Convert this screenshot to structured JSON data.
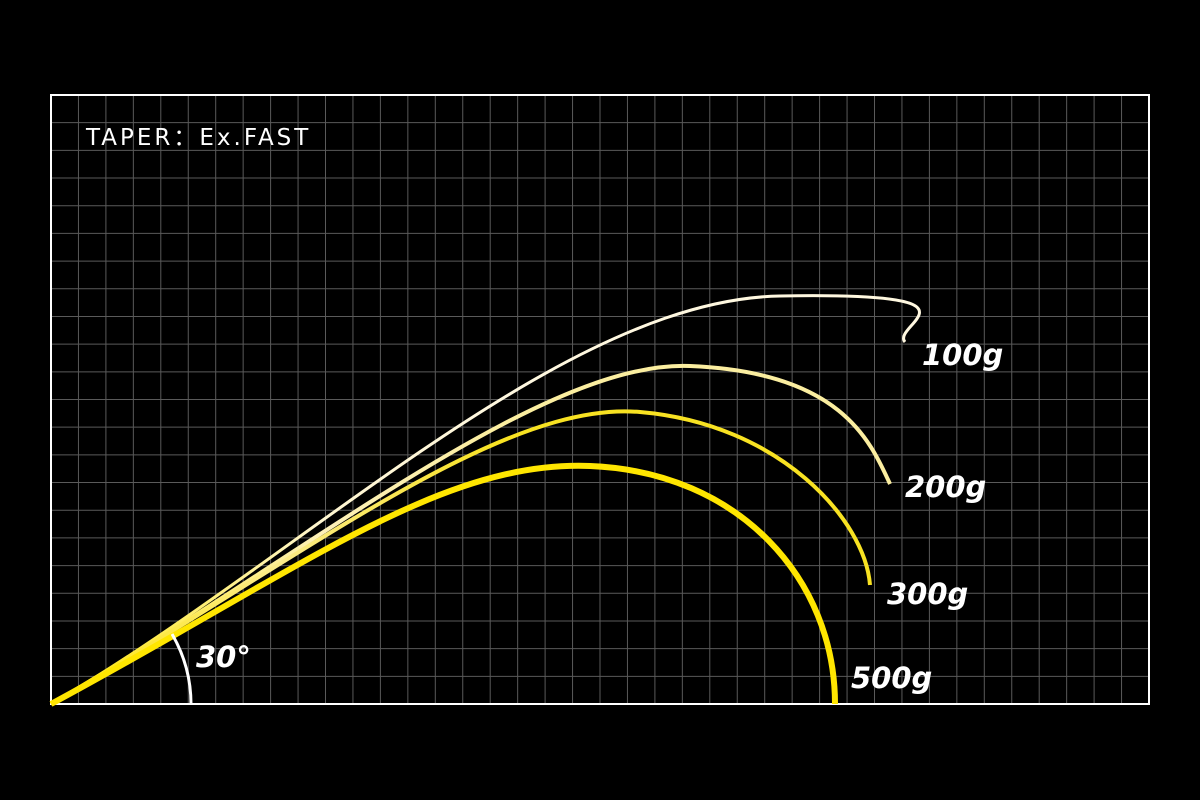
{
  "title": "TAPER：Ex.FAST",
  "angle_label": "30°",
  "curves": [
    {
      "label": "100g"
    },
    {
      "label": "200g"
    },
    {
      "label": "300g"
    },
    {
      "label": "500g"
    }
  ]
}
